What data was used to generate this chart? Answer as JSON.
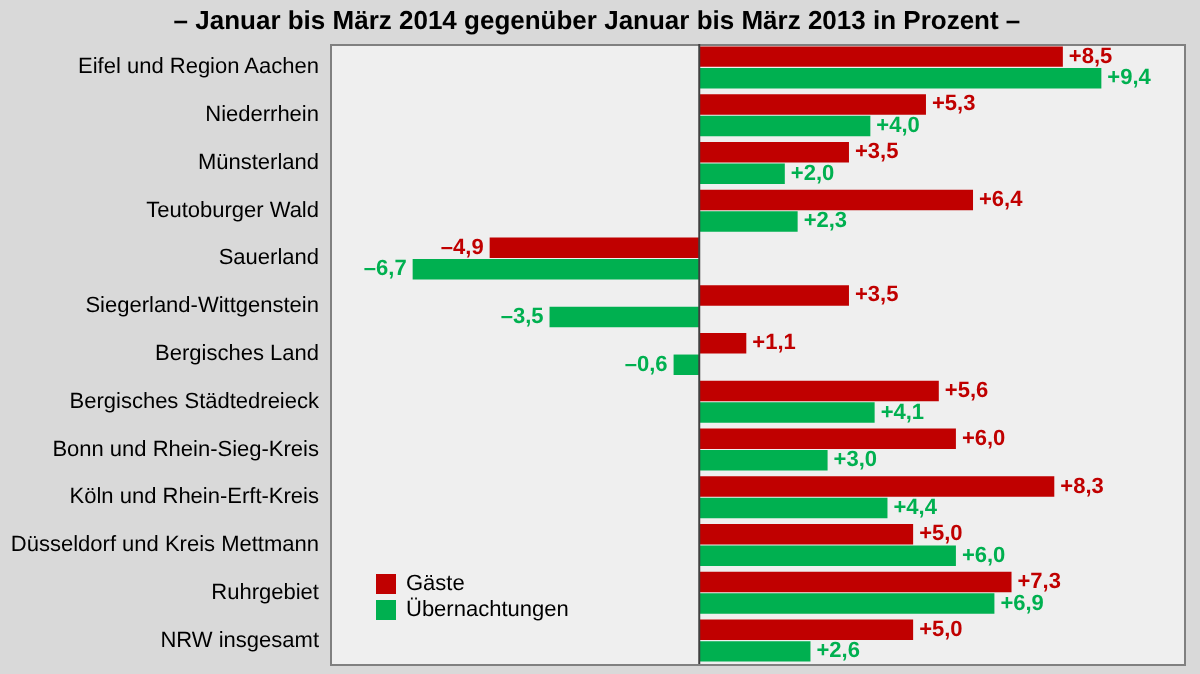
{
  "chart_data": {
    "type": "bar",
    "orientation": "horizontal",
    "title": "– Januar bis März 2014 gegenüber Januar bis März 2013 in Prozent –",
    "categories": [
      "Eifel und Region Aachen",
      "Niederrhein",
      "Münsterland",
      "Teutoburger Wald",
      "Sauerland",
      "Siegerland-Wittgenstein",
      "Bergisches Land",
      "Bergisches Städtedreieck",
      "Bonn und Rhein-Sieg-Kreis",
      "Köln und  Rhein-Erft-Kreis",
      "Düsseldorf und Kreis Mettmann",
      "Ruhrgebiet",
      "NRW insgesamt"
    ],
    "series": [
      {
        "name": "Gäste",
        "color": "#c00000",
        "values": [
          8.5,
          5.3,
          3.5,
          6.4,
          -4.9,
          3.5,
          1.1,
          5.6,
          6.0,
          8.3,
          5.0,
          7.3,
          5.0
        ],
        "value_labels": [
          "+8,5",
          "+5,3",
          "+3,5",
          "+6,4",
          "–4,9",
          "+3,5",
          "+1,1",
          "+5,6",
          "+6,0",
          "+8,3",
          "+5,0",
          "+7,3",
          "+5,0"
        ]
      },
      {
        "name": "Übernachtungen",
        "color": "#00b050",
        "values": [
          9.4,
          4.0,
          2.0,
          2.3,
          -6.7,
          -3.5,
          -0.6,
          4.1,
          3.0,
          4.4,
          6.0,
          6.9,
          2.6
        ],
        "value_labels": [
          "+9,4",
          "+4,0",
          "+2,0",
          "+2,3",
          "–6,7",
          "–3,5",
          "–0,6",
          "+4,1",
          "+3,0",
          "+4,4",
          "+6,0",
          "+6,9",
          "+2,6"
        ]
      }
    ],
    "ref_lines": [
      {
        "axis": "x",
        "value": 0
      }
    ],
    "legend": "bottom left",
    "tick_labels": "y"
  }
}
